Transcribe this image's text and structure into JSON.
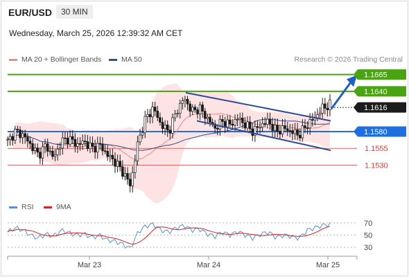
{
  "header": {
    "pair": "EUR/USD",
    "timeframe": "30 MIN",
    "timestamp": "Wednesday, March 25, 2026 12:39:32 AM CET",
    "credit": "Research © 2026 Trading Central"
  },
  "legend": {
    "ma20": {
      "label": "MA 20 + Bollinger Bands",
      "color": "#f08a8a"
    },
    "ma50": {
      "label": "MA 50",
      "color": "#2f4f8f"
    },
    "rsi": {
      "label": "RSI",
      "color": "#5a8fdc"
    },
    "ma9": {
      "label": "9MA",
      "color": "#e02020"
    }
  },
  "chart_data": {
    "type": "candlestick",
    "x_labels": [
      "Mar 23",
      "Mar 24",
      "Mar 25"
    ],
    "last_price": 1.1616,
    "ylim": [
      1.1485,
      1.1675
    ],
    "levels": [
      {
        "value": 1.1665,
        "label": "1.1665",
        "kind": "resistance",
        "color": "#4aa312"
      },
      {
        "value": 1.164,
        "label": "1.1640",
        "kind": "resistance",
        "color": "#4aa312"
      },
      {
        "value": 1.158,
        "label": "1.1580",
        "kind": "pivot",
        "color": "#1f6fe0"
      },
      {
        "value": 1.1555,
        "label": "1.1555",
        "kind": "support",
        "color": "#e06060"
      },
      {
        "value": 1.153,
        "label": "1.1530",
        "kind": "support",
        "color": "#e06060"
      }
    ],
    "price_path": [
      1.1565,
      1.158,
      1.1575,
      1.156,
      1.1545,
      1.156,
      1.154,
      1.1565,
      1.157,
      1.156,
      1.1565,
      1.1555,
      1.156,
      1.1545,
      1.1535,
      1.152,
      1.15,
      1.1565,
      1.16,
      1.1615,
      1.159,
      1.158,
      1.161,
      1.163,
      1.161,
      1.1615,
      1.16,
      1.1585,
      1.1595,
      1.159,
      1.16,
      1.159,
      1.158,
      1.159,
      1.1595,
      1.158,
      1.1585,
      1.158,
      1.1575,
      1.159,
      1.16,
      1.1615,
      1.162
    ],
    "rsi": {
      "ticks": [
        70,
        50,
        30
      ],
      "ylim": [
        20,
        80
      ],
      "values": [
        55,
        62,
        58,
        50,
        45,
        52,
        48,
        58,
        54,
        50,
        52,
        46,
        50,
        42,
        40,
        35,
        28,
        55,
        65,
        68,
        58,
        55,
        62,
        66,
        58,
        60,
        52,
        48,
        55,
        50,
        56,
        50,
        45,
        52,
        55,
        46,
        50,
        48,
        45,
        58,
        62,
        66,
        68
      ]
    }
  }
}
